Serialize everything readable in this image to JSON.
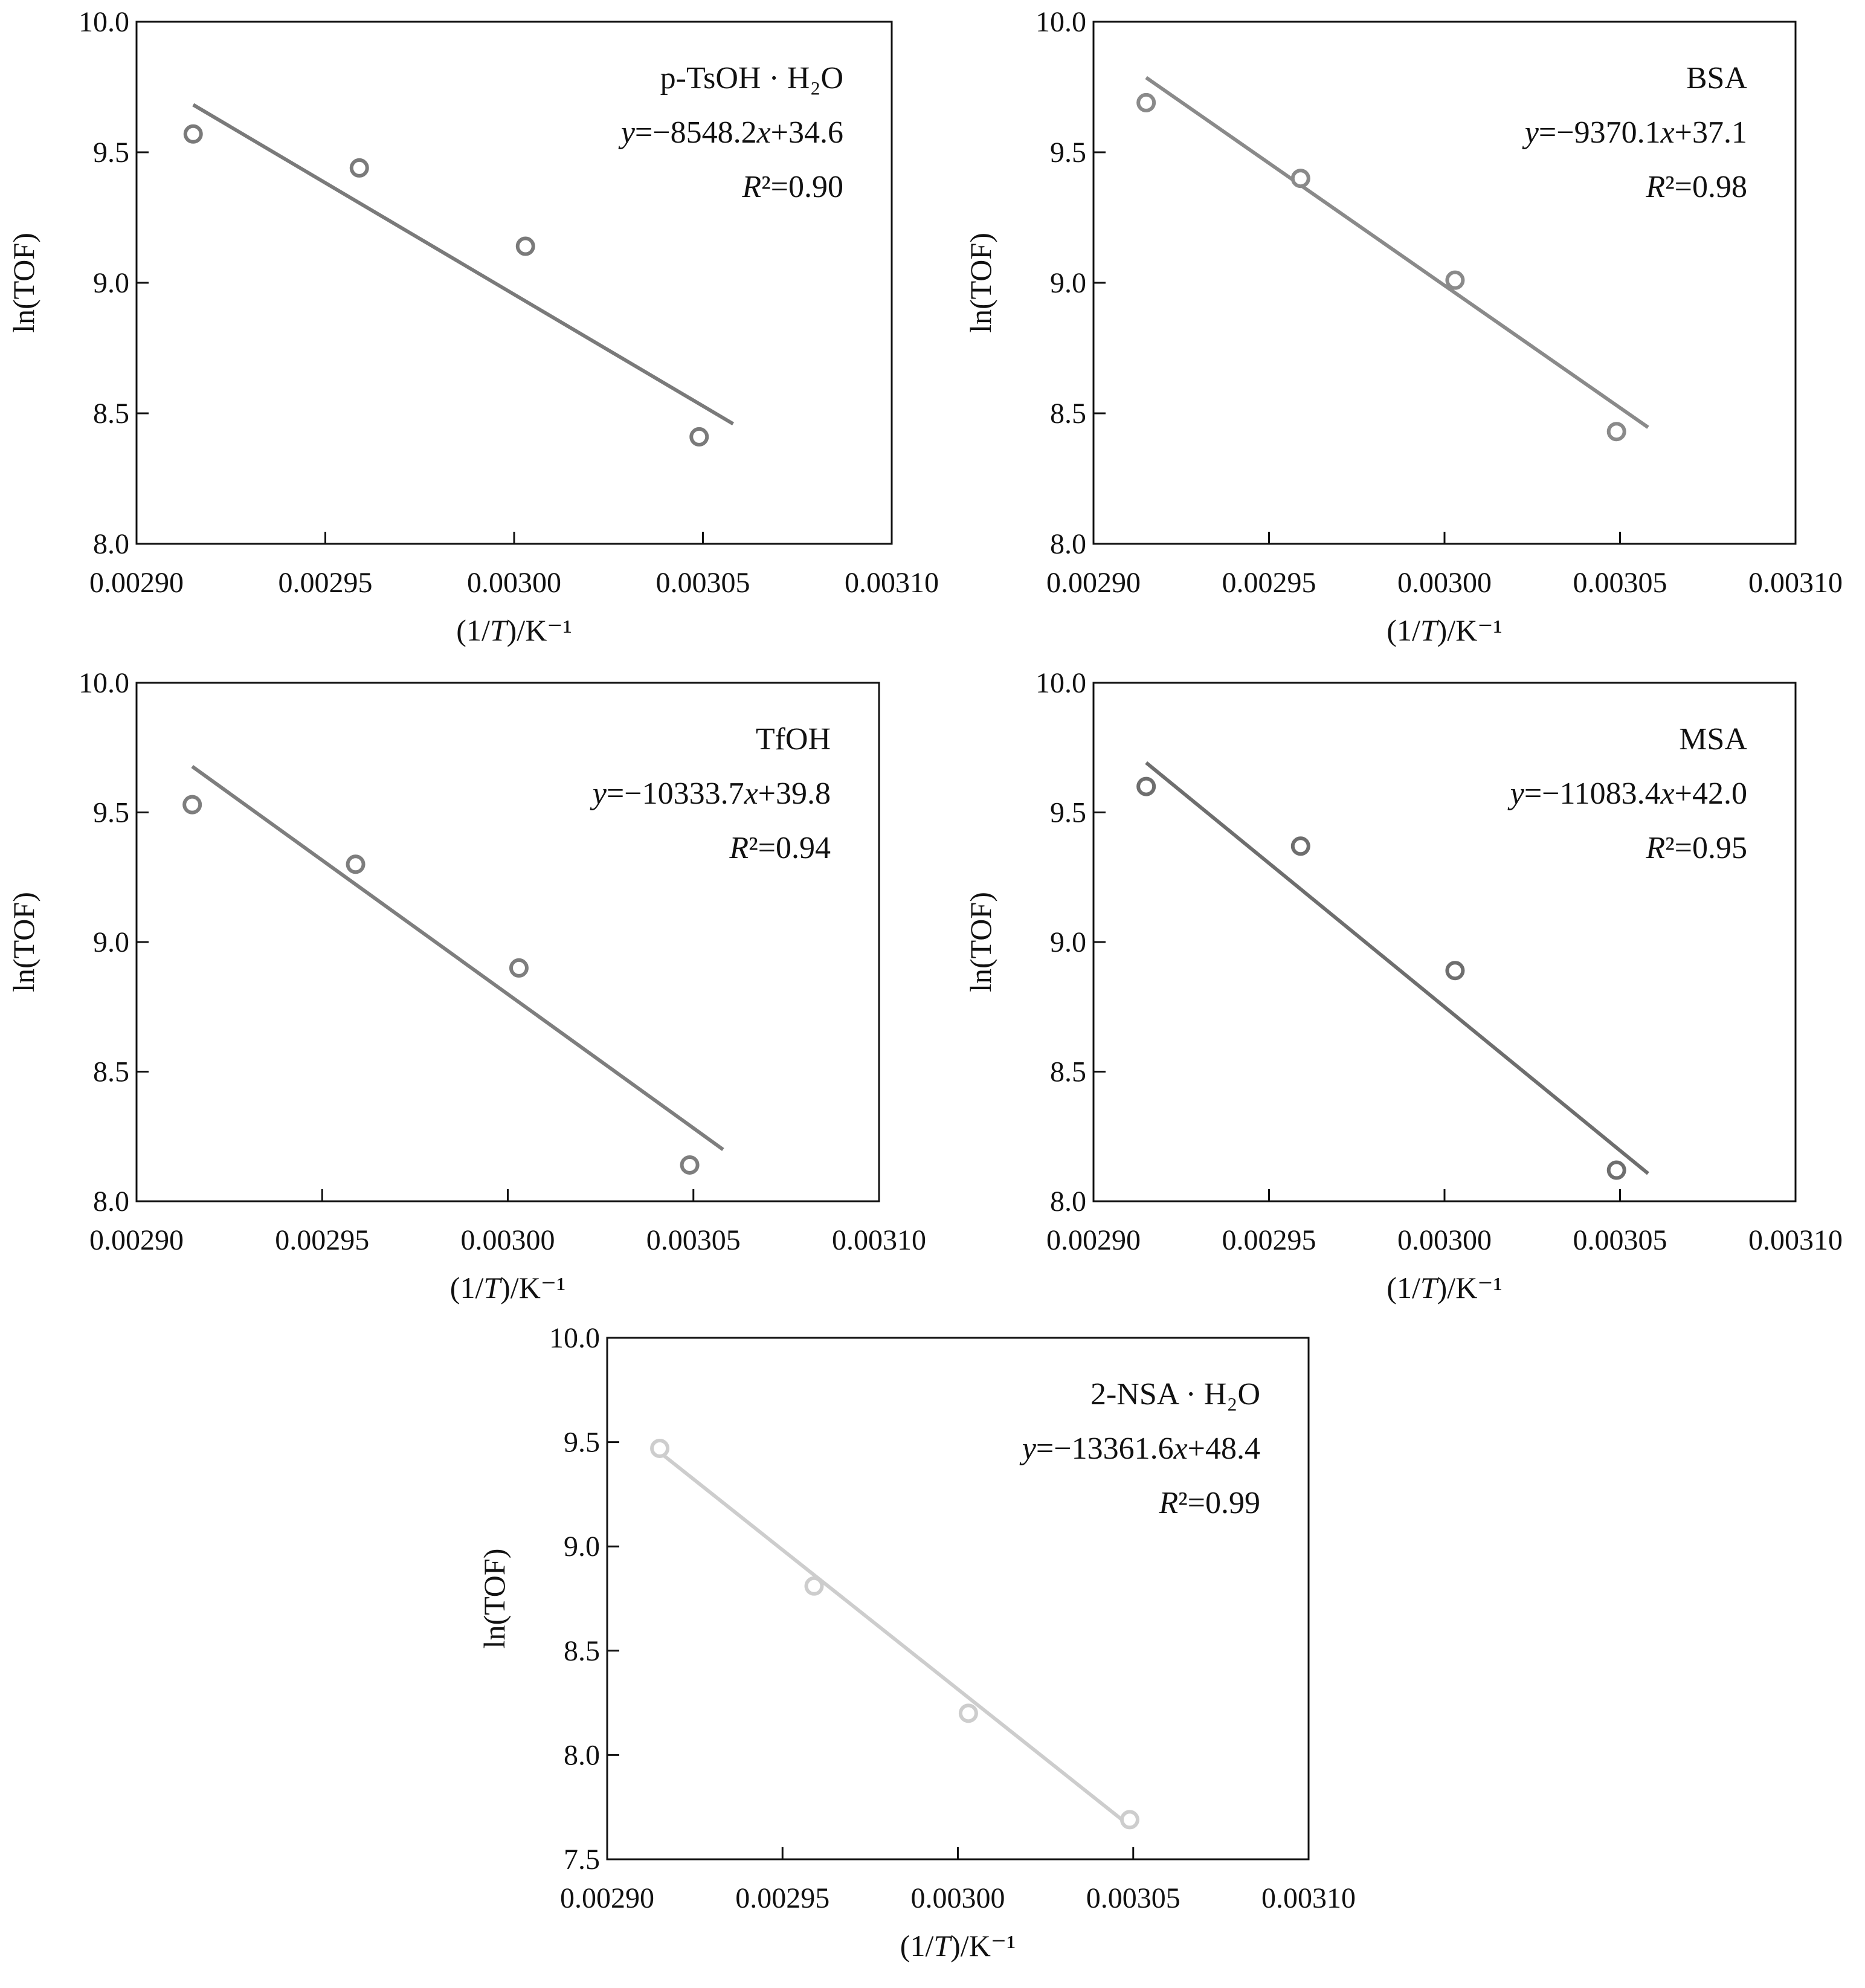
{
  "chart_data": [
    {
      "type": "scatter",
      "title": "p-TsOH · H₂O",
      "equation": "y=−8548.2x+34.6",
      "r_squared": "R²=0.90",
      "slope": -8548.2,
      "intercept": 34.6,
      "x": [
        0.002915,
        0.002959,
        0.003003,
        0.003049
      ],
      "y": [
        9.57,
        9.44,
        9.14,
        8.41
      ],
      "fit_x_range": [
        0.002915,
        0.003058
      ],
      "xlabel": "(1/T)/K⁻¹",
      "ylabel": "ln(TOF)",
      "xlim": [
        0.0029,
        0.0031
      ],
      "ylim": [
        8.0,
        10.0
      ],
      "xticks": [
        "0.00290",
        "0.00295",
        "0.00300",
        "0.00305",
        "0.00310"
      ],
      "yticks": [
        "8.0",
        "8.5",
        "9.0",
        "9.5",
        "10.0"
      ],
      "color": "#7a7a7a",
      "grid": false,
      "legend": "top-right"
    },
    {
      "type": "scatter",
      "title": "BSA",
      "equation": "y=−9370.1x+37.1",
      "r_squared": "R²=0.98",
      "slope": -9370.1,
      "intercept": 37.1,
      "x": [
        0.002915,
        0.002959,
        0.003003,
        0.003049
      ],
      "y": [
        9.69,
        9.4,
        9.01,
        8.43
      ],
      "fit_x_range": [
        0.002915,
        0.003058
      ],
      "xlabel": "(1/T)/K⁻¹",
      "ylabel": "ln(TOF)",
      "xlim": [
        0.0029,
        0.0031
      ],
      "ylim": [
        8.0,
        10.0
      ],
      "xticks": [
        "0.00290",
        "0.00295",
        "0.00300",
        "0.00305",
        "0.00310"
      ],
      "yticks": [
        "8.0",
        "8.5",
        "9.0",
        "9.5",
        "10.0"
      ],
      "color": "#8a8a8a",
      "grid": false,
      "legend": "top-right"
    },
    {
      "type": "scatter",
      "title": "TfOH",
      "equation": "y=−10333.7x+39.8",
      "r_squared": "R²=0.94",
      "slope": -10333.7,
      "intercept": 39.8,
      "x": [
        0.002915,
        0.002959,
        0.003003,
        0.003049
      ],
      "y": [
        9.53,
        9.3,
        8.9,
        8.14
      ],
      "fit_x_range": [
        0.002915,
        0.003058
      ],
      "xlabel": "(1/T)/K⁻¹",
      "ylabel": "ln(TOF)",
      "xlim": [
        0.0029,
        0.0031
      ],
      "ylim": [
        8.0,
        10.0
      ],
      "xticks": [
        "0.00290",
        "0.00295",
        "0.00300",
        "0.00305",
        "0.00310"
      ],
      "yticks": [
        "8.0",
        "8.5",
        "9.0",
        "9.5",
        "10.0"
      ],
      "color": "#7e7e7e",
      "grid": false,
      "legend": "top-right"
    },
    {
      "type": "scatter",
      "title": "MSA",
      "equation": "y=−11083.4x+42.0",
      "r_squared": "R²=0.95",
      "slope": -11083.4,
      "intercept": 42.0,
      "x": [
        0.002915,
        0.002959,
        0.003003,
        0.003049
      ],
      "y": [
        9.6,
        9.37,
        8.89,
        8.12
      ],
      "fit_x_range": [
        0.002915,
        0.003058
      ],
      "xlabel": "(1/T)/K⁻¹",
      "ylabel": "ln(TOF)",
      "xlim": [
        0.0029,
        0.0031
      ],
      "ylim": [
        8.0,
        10.0
      ],
      "xticks": [
        "0.00290",
        "0.00295",
        "0.00300",
        "0.00305",
        "0.00310"
      ],
      "yticks": [
        "8.0",
        "8.5",
        "9.0",
        "9.5",
        "10.0"
      ],
      "color": "#6e6e6e",
      "grid": false,
      "legend": "top-right"
    },
    {
      "type": "scatter",
      "title": "2-NSA · H₂O",
      "equation": "y=−13361.6x+48.4",
      "r_squared": "R²=0.99",
      "slope": -13361.6,
      "intercept": 48.4,
      "x": [
        0.002915,
        0.002959,
        0.003003,
        0.003049
      ],
      "y": [
        9.47,
        8.81,
        8.2,
        7.69
      ],
      "fit_x_range": [
        0.002915,
        0.003049
      ],
      "xlabel": "(1/T)/K⁻¹",
      "ylabel": "ln(TOF)",
      "xlim": [
        0.0029,
        0.0031
      ],
      "ylim": [
        7.5,
        10.0
      ],
      "xticks": [
        "0.00290",
        "0.00295",
        "0.00300",
        "0.00305",
        "0.00310"
      ],
      "yticks": [
        "7.5",
        "8.0",
        "8.5",
        "9.0",
        "9.5",
        "10.0"
      ],
      "color": "#cdcdcd",
      "grid": false,
      "legend": "top-right"
    }
  ]
}
